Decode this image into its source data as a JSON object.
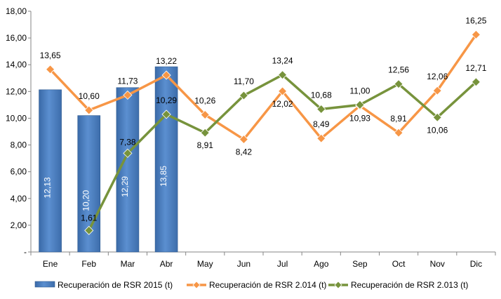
{
  "chart_data": {
    "type": "bar",
    "categories": [
      "Ene",
      "Feb",
      "Mar",
      "Abr",
      "May",
      "Jun",
      "Jul",
      "Ago",
      "Sep",
      "Oct",
      "Nov",
      "Dic"
    ],
    "ylim": [
      0,
      18
    ],
    "yticks": [
      "-",
      "2,00",
      "4,00",
      "6,00",
      "8,00",
      "10,00",
      "12,00",
      "14,00",
      "16,00",
      "18,00"
    ],
    "grid": false,
    "legend_position": "bottom",
    "series": [
      {
        "name": "Recuperación de RSR 2015 (t)",
        "kind": "bar",
        "color": "#4f81bd",
        "values": [
          12.13,
          10.2,
          12.29,
          13.85,
          null,
          null,
          null,
          null,
          null,
          null,
          null,
          null
        ],
        "labels": [
          "12,13",
          "10,20",
          "12,29",
          "13,85",
          "",
          "",
          "",
          "",
          "",
          "",
          "",
          ""
        ]
      },
      {
        "name": "Recuperación de RSR 2.014 (t)",
        "kind": "line",
        "color": "#f79646",
        "values": [
          13.65,
          10.6,
          11.73,
          13.22,
          10.26,
          8.42,
          12.02,
          8.49,
          10.93,
          8.91,
          12.06,
          16.25
        ],
        "labels": [
          "13,65",
          "10,60",
          "11,73",
          "13,22",
          "10,26",
          "8,42",
          "12,02",
          "8,49",
          "10,93",
          "8,91",
          "12,06",
          "16,25"
        ]
      },
      {
        "name": "Recuperación de RSR 2.013 (t)",
        "kind": "line",
        "color": "#77933c",
        "values": [
          null,
          1.61,
          7.38,
          10.29,
          8.91,
          11.7,
          13.24,
          10.68,
          11.0,
          12.56,
          10.06,
          12.71
        ],
        "labels": [
          "",
          "1,61",
          "7,38",
          "10,29",
          "8,91",
          "11,70",
          "13,24",
          "10,68",
          "11,00",
          "12,56",
          "10,06",
          "12,71"
        ]
      }
    ]
  }
}
